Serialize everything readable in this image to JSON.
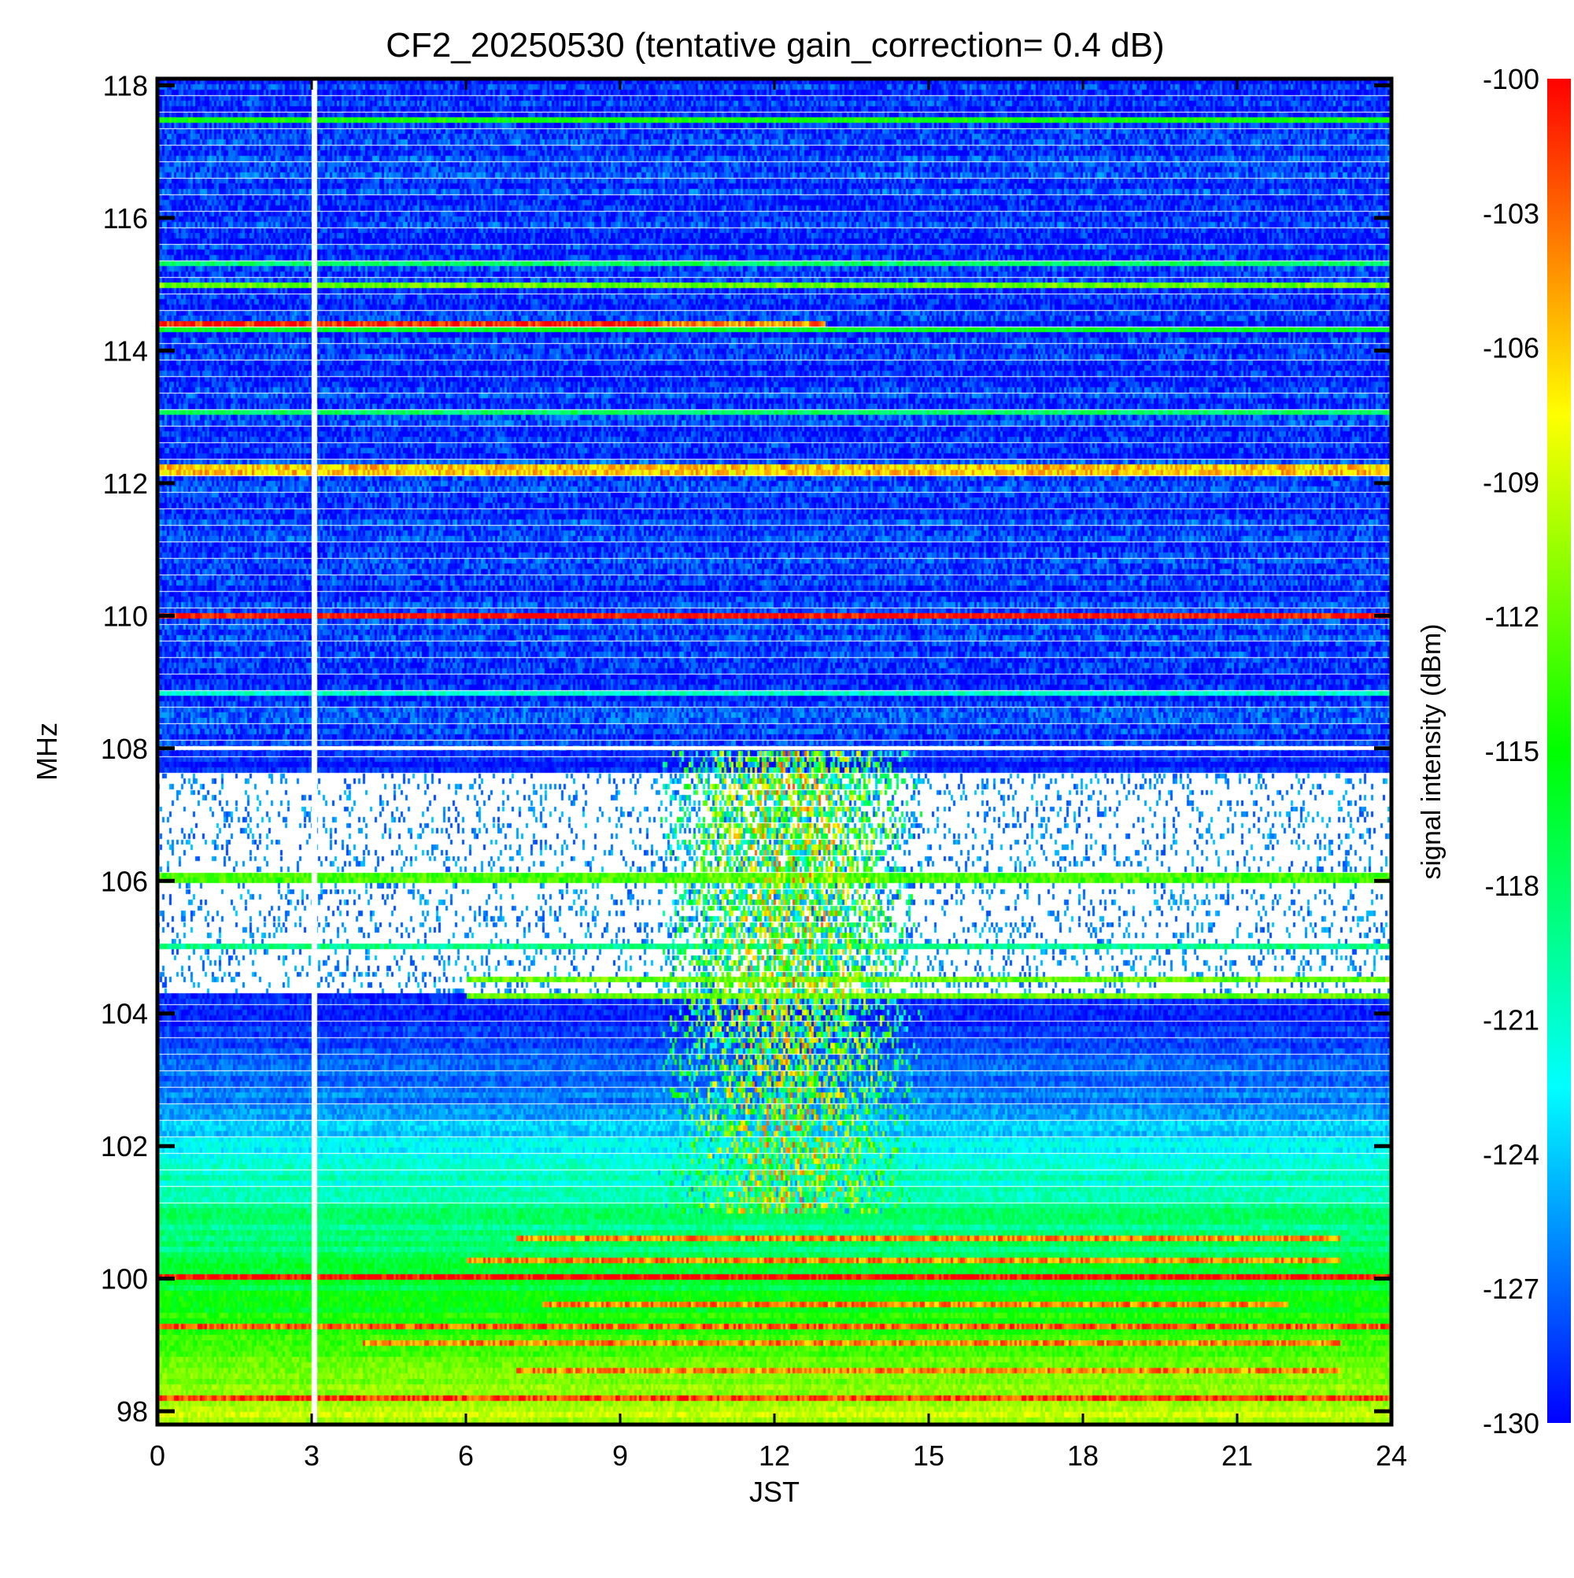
{
  "chart_data": {
    "type": "heatmap",
    "title": "CF2_20250530 (tentative gain_correction=  0.4 dB)",
    "xlabel": "JST",
    "ylabel": "MHz",
    "colorbar_label": "signal intensity (dBm)",
    "xlim": [
      0,
      24
    ],
    "ylim": [
      97.8,
      118.1
    ],
    "x_ticks": [
      0,
      3,
      6,
      9,
      12,
      15,
      18,
      21,
      24
    ],
    "y_ticks": [
      98,
      100,
      102,
      104,
      106,
      108,
      110,
      112,
      114,
      116,
      118
    ],
    "color_range": [
      -130,
      -100
    ],
    "colorbar_ticks": [
      -100,
      -103,
      -106,
      -109,
      -112,
      -115,
      -118,
      -121,
      -124,
      -127,
      -130
    ],
    "colormap": [
      "#0000ff",
      "#00ffff",
      "#00ff00",
      "#ffff00",
      "#ff0000"
    ],
    "missing_color": "#ffffff",
    "data_gap_x": 3.05,
    "regions": [
      {
        "band": "upper",
        "y_range": [
          108,
          118.1
        ],
        "base_dbm": -128.5,
        "variation_dbm": 3
      },
      {
        "band": "lower",
        "y_range": [
          97.8,
          108
        ],
        "base_profile_dbm": [
          [
            98,
            -109
          ],
          [
            99,
            -113
          ],
          [
            100,
            -117
          ],
          [
            101,
            -119
          ],
          [
            102,
            -123
          ],
          [
            103,
            -127
          ],
          [
            104,
            -128.5
          ],
          [
            108,
            -129
          ]
        ]
      }
    ],
    "dropout_ranges_mhz": [
      [
        104.3,
        107.6
      ]
    ],
    "strong_lines": [
      {
        "freq": 110.0,
        "dbm": -100,
        "x_range": [
          0,
          24
        ]
      },
      {
        "freq": 100.0,
        "dbm": -100,
        "x_range": [
          0,
          24
        ]
      },
      {
        "freq": 114.4,
        "dbm": -101,
        "x_range": [
          0,
          9.8
        ]
      },
      {
        "freq": 114.4,
        "dbm": -104,
        "x_range": [
          9.8,
          13
        ]
      },
      {
        "freq": 112.2,
        "dbm": -106,
        "x_range": [
          0,
          24
        ]
      },
      {
        "freq": 117.5,
        "dbm": -115,
        "x_range": [
          0,
          24
        ]
      },
      {
        "freq": 115.0,
        "dbm": -112,
        "x_range": [
          0,
          24
        ]
      },
      {
        "freq": 114.3,
        "dbm": -116,
        "x_range": [
          0,
          24
        ]
      },
      {
        "freq": 115.3,
        "dbm": -118,
        "x_range": [
          0,
          24
        ]
      },
      {
        "freq": 113.1,
        "dbm": -118,
        "x_range": [
          0,
          24
        ]
      },
      {
        "freq": 108.8,
        "dbm": -121,
        "x_range": [
          0,
          24
        ]
      },
      {
        "freq": 105.0,
        "dbm": -119,
        "x_range": [
          0,
          24
        ]
      },
      {
        "freq": 106.05,
        "dbm": -113,
        "x_range": [
          0,
          24
        ]
      },
      {
        "freq": 104.5,
        "dbm": -112,
        "x_range": [
          6,
          24
        ]
      },
      {
        "freq": 104.3,
        "dbm": -112,
        "x_range": [
          6,
          24
        ]
      },
      {
        "freq": 100.6,
        "dbm": -104,
        "x_range": [
          7,
          23
        ]
      },
      {
        "freq": 100.3,
        "dbm": -104,
        "x_range": [
          6,
          23
        ]
      },
      {
        "freq": 99.6,
        "dbm": -104,
        "x_range": [
          7.5,
          22
        ]
      },
      {
        "freq": 99.3,
        "dbm": -103,
        "x_range": [
          0,
          24
        ]
      },
      {
        "freq": 99.0,
        "dbm": -104,
        "x_range": [
          4,
          23
        ]
      },
      {
        "freq": 98.6,
        "dbm": -104,
        "x_range": [
          7,
          23
        ]
      },
      {
        "freq": 98.2,
        "dbm": -102,
        "x_range": [
          0,
          24
        ]
      }
    ],
    "midday_enhancement": {
      "x_center": 12.3,
      "x_halfwidth": 2.6,
      "y_range": [
        101,
        108
      ],
      "peak_dbm": -102
    }
  }
}
